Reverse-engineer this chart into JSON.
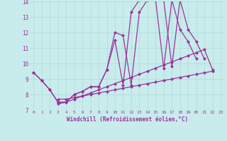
{
  "xlabel": "Windchill (Refroidissement éolien,°C)",
  "bg_color": "#c8ecec",
  "grid_color": "#b0d8d8",
  "line_color": "#993399",
  "xlim": [
    -0.5,
    23.5
  ],
  "ylim": [
    7,
    14
  ],
  "xticks": [
    0,
    1,
    2,
    3,
    4,
    5,
    6,
    7,
    8,
    9,
    10,
    11,
    12,
    13,
    14,
    15,
    16,
    17,
    18,
    19,
    20,
    21,
    22,
    23
  ],
  "yticks": [
    7,
    8,
    9,
    10,
    11,
    12,
    13,
    14
  ],
  "series_x": [
    [
      0,
      1,
      2,
      3,
      4,
      5,
      6,
      7,
      8,
      9,
      10,
      11,
      12,
      13,
      14,
      15,
      16,
      17,
      18,
      19,
      20,
      21,
      22,
      23
    ],
    [
      0,
      1,
      2,
      3,
      4,
      5,
      6,
      7,
      8,
      9,
      10,
      11,
      12,
      13,
      14,
      15,
      16,
      17,
      18,
      19,
      20,
      21,
      22,
      23
    ],
    [
      0,
      1,
      2,
      3,
      4,
      5,
      6,
      7,
      8,
      9,
      10,
      11,
      12,
      13,
      14,
      15,
      16,
      17,
      18,
      19,
      20,
      21,
      22,
      23
    ],
    [
      0,
      1,
      2,
      3,
      4,
      5,
      6,
      7,
      8,
      9,
      10,
      11,
      12,
      13,
      14,
      15,
      16,
      17,
      18,
      19,
      20,
      21,
      22,
      23
    ]
  ],
  "series_y": [
    [
      9.4,
      8.9,
      8.3,
      7.5,
      7.5,
      8.0,
      8.2,
      8.5,
      8.5,
      9.6,
      12.0,
      11.8,
      8.6,
      13.3,
      14.1,
      14.1,
      14.1,
      9.8,
      14.1,
      12.2,
      11.4,
      10.3,
      null,
      null
    ],
    [
      9.4,
      8.9,
      8.3,
      7.5,
      7.5,
      8.0,
      8.2,
      8.5,
      8.5,
      9.6,
      11.5,
      8.6,
      13.3,
      14.1,
      14.1,
      14.1,
      9.7,
      14.1,
      12.2,
      11.4,
      10.3,
      null,
      null,
      null
    ],
    [
      null,
      null,
      null,
      7.7,
      7.7,
      7.8,
      7.9,
      8.0,
      8.1,
      8.2,
      8.3,
      8.4,
      8.5,
      8.6,
      8.7,
      8.8,
      8.9,
      9.0,
      9.1,
      9.2,
      9.3,
      9.4,
      9.5,
      null
    ],
    [
      null,
      null,
      null,
      7.4,
      7.5,
      7.7,
      7.9,
      8.1,
      8.3,
      8.5,
      8.7,
      8.9,
      9.1,
      9.3,
      9.5,
      9.7,
      9.9,
      10.1,
      10.3,
      10.5,
      10.7,
      10.9,
      9.6,
      null
    ]
  ]
}
